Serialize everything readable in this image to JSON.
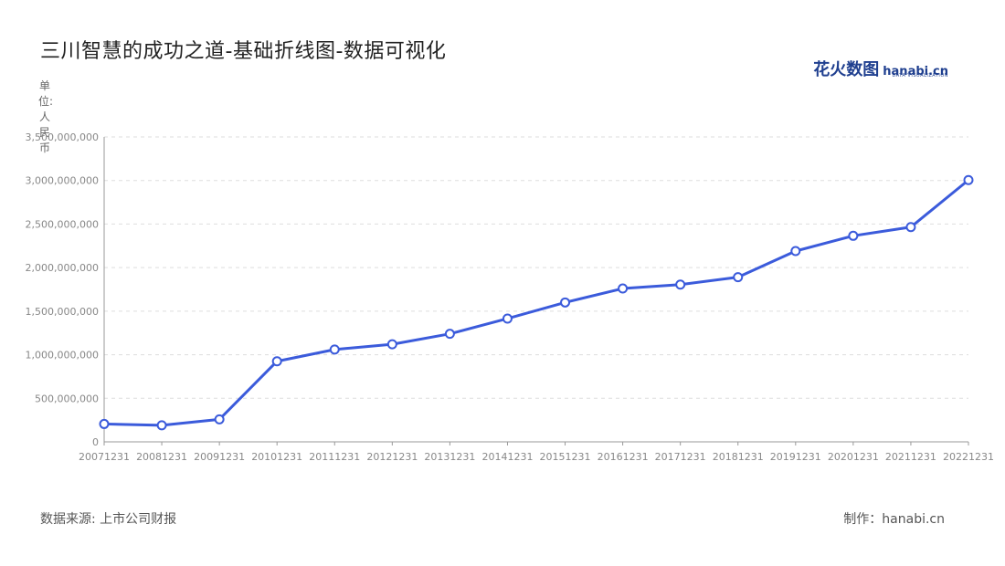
{
  "title": "三川智慧的成功之道-基础折线图-数据可视化",
  "brand": {
    "cn": "花火数图",
    "en": "hanabi.cn",
    "sub": "DATA VISUALIZATION"
  },
  "unit_label": "单位:人民币",
  "source": "数据来源: 上市公司财报",
  "credit": "制作：hanabi.cn",
  "colors": {
    "line": "#3b5bdb",
    "grid": "#dddddd",
    "axis": "#999999",
    "marker_fill": "#ffffff"
  },
  "chart_data": {
    "type": "line",
    "title": "三川智慧的成功之道-基础折线图-数据可视化",
    "ylabel": "单位:人民币",
    "xlabel": "",
    "categories": [
      "20071231",
      "20081231",
      "20091231",
      "20101231",
      "20111231",
      "20121231",
      "20131231",
      "20141231",
      "20151231",
      "20161231",
      "20171231",
      "20181231",
      "20191231",
      "20201231",
      "20211231",
      "20221231"
    ],
    "series": [
      {
        "name": "",
        "values": [
          205000000,
          190000000,
          258000000,
          925000000,
          1060000000,
          1120000000,
          1240000000,
          1415000000,
          1600000000,
          1760000000,
          1805000000,
          1890000000,
          2190000000,
          2365000000,
          2465000000,
          3005000000
        ]
      }
    ],
    "ylim": [
      0,
      3500000000
    ],
    "yticks": [
      0,
      500000000,
      1000000000,
      1500000000,
      2000000000,
      2500000000,
      3000000000,
      3500000000
    ],
    "ytick_labels": [
      "0",
      "500,000,000",
      "1,000,000,000",
      "1,500,000,000",
      "2,000,000,000",
      "2,500,000,000",
      "3,000,000,000",
      "3,500,000,000"
    ],
    "grid": true,
    "legend": "none"
  }
}
